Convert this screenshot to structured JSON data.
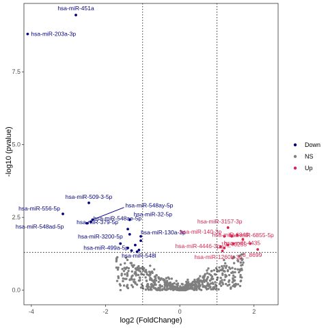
{
  "chart_data": {
    "type": "scatter",
    "title": "",
    "xlabel": "log2 (FoldChange)",
    "ylabel": "-log10 (pvalue)",
    "xlim": [
      -4.2,
      2.65
    ],
    "ylim": [
      -0.5,
      9.85
    ],
    "x_ticks": [
      -4,
      -2,
      0,
      2
    ],
    "x_tick_labels": [
      "-4",
      "-2",
      "0",
      "2"
    ],
    "y_ticks": [
      0,
      2.5,
      5,
      7.5
    ],
    "y_tick_labels": [
      "0.0",
      "2.5",
      "5.0",
      "7.5"
    ],
    "grid": false,
    "legend_position": "right",
    "thresholds": {
      "x": [
        -1,
        1
      ],
      "y": 1.3
    },
    "colors": {
      "Down": "#00007f",
      "NS": "#7f7f7f",
      "Up": "#d6254f"
    },
    "legend": [
      "Down",
      "NS",
      "Up"
    ],
    "down_points": [
      {
        "x": -2.8,
        "y": 9.45,
        "label": "hsa-miR-451a"
      },
      {
        "x": -4.1,
        "y": 8.8,
        "label": "hsa-miR-203a-3p"
      },
      {
        "x": -2.45,
        "y": 3.0,
        "label": "hsa-miR-509-3-5p"
      },
      {
        "x": -3.15,
        "y": 2.62,
        "label": "hsa-miR-556-5p"
      },
      {
        "x": -2.35,
        "y": 2.42,
        "label": "hsa-miR-548ay-5p"
      },
      {
        "x": -2.4,
        "y": 2.35,
        "label": "hsa-miR-548ae-5p"
      },
      {
        "x": -1.35,
        "y": 2.42,
        "label": "hsa-miR-32-5p"
      },
      {
        "x": -2.5,
        "y": 2.3,
        "label": "hsa-miR-548ad-5p"
      },
      {
        "x": -1.4,
        "y": 2.1,
        "label": "hsa-miR-379-5p"
      },
      {
        "x": -1.05,
        "y": 1.85,
        "label": "hsa-miR-130a-3p"
      },
      {
        "x": -1.35,
        "y": 1.92,
        "label": "hsa-miR-3200-5p"
      },
      {
        "x": -1.2,
        "y": 1.55,
        "label": "hsa-miR-499a-5p"
      },
      {
        "x": -1.1,
        "y": 1.38,
        "label": "hsa-miR-548l"
      },
      {
        "x": -1.15,
        "y": 1.32,
        "label": ""
      },
      {
        "x": -1.4,
        "y": 1.45,
        "label": ""
      },
      {
        "x": -1.6,
        "y": 1.6,
        "label": ""
      },
      {
        "x": -1.05,
        "y": 1.7,
        "label": ""
      },
      {
        "x": -1.3,
        "y": 1.36,
        "label": ""
      }
    ],
    "up_points": [
      {
        "x": 1.3,
        "y": 2.15,
        "label": "hsa-miR-3157-3p"
      },
      {
        "x": 1.2,
        "y": 1.85,
        "label": "hsa-miR-140-3p"
      },
      {
        "x": 1.4,
        "y": 1.85,
        "label": "hsa-miR-6855-5p"
      },
      {
        "x": 1.55,
        "y": 1.9,
        "label": "hsa-miR-6849"
      },
      {
        "x": 1.9,
        "y": 1.6,
        "label": "19_40255"
      },
      {
        "x": 1.3,
        "y": 1.55,
        "label": "hsa-miR-4435"
      },
      {
        "x": 1.2,
        "y": 1.45,
        "label": "hsa-miR-4446-3p"
      },
      {
        "x": 1.15,
        "y": 1.35,
        "label": "hsa-miR-1260b-3p"
      },
      {
        "x": 2.1,
        "y": 1.4,
        "label": "3_8699"
      },
      {
        "x": 1.45,
        "y": 1.6,
        "label": ""
      },
      {
        "x": 1.1,
        "y": 1.5,
        "label": ""
      },
      {
        "x": 1.7,
        "y": 1.75,
        "label": ""
      }
    ]
  }
}
